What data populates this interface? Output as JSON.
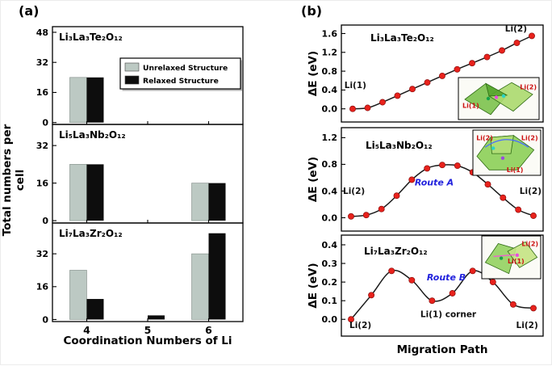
{
  "panels": {
    "a": {
      "label": "(a)",
      "ylabel": "Total numbers per cell",
      "xlabel": "Coordination Numbers of Li"
    },
    "b": {
      "label": "(b)",
      "xlabel": "Migration Path"
    }
  },
  "legend": {
    "items": [
      {
        "label": "Unrelaxed Structure",
        "color": "#bcc9c3"
      },
      {
        "label": "Relaxed Structure",
        "color": "#0d0d0d"
      }
    ]
  },
  "chart_data": [
    {
      "id": "a1",
      "type": "bar",
      "panel": "a",
      "title": "Li₃La₃Te₂O₁₂",
      "categories": [
        "4",
        "5",
        "6"
      ],
      "series": [
        {
          "name": "Unrelaxed Structure",
          "color": "#bcc9c3",
          "values": [
            24,
            0,
            0
          ]
        },
        {
          "name": "Relaxed Structure",
          "color": "#0d0d0d",
          "values": [
            24,
            0,
            0
          ]
        }
      ],
      "ylim": [
        0,
        48
      ],
      "yticks": [
        0,
        16,
        32,
        48
      ],
      "has_legend": true
    },
    {
      "id": "a2",
      "type": "bar",
      "panel": "a",
      "title": "Li₅La₃Nb₂O₁₂",
      "categories": [
        "4",
        "5",
        "6"
      ],
      "series": [
        {
          "name": "Unrelaxed Structure",
          "color": "#bcc9c3",
          "values": [
            24,
            0,
            16
          ]
        },
        {
          "name": "Relaxed Structure",
          "color": "#0d0d0d",
          "values": [
            24,
            0,
            16
          ]
        }
      ],
      "ylim": [
        0,
        40
      ],
      "yticks": [
        0,
        16,
        32
      ]
    },
    {
      "id": "a3",
      "type": "bar",
      "panel": "a",
      "title": "Li₇La₃Zr₂O₁₂",
      "categories": [
        "4",
        "5",
        "6"
      ],
      "series": [
        {
          "name": "Unrelaxed Structure",
          "color": "#bcc9c3",
          "values": [
            24,
            0,
            32
          ]
        },
        {
          "name": "Relaxed Structure",
          "color": "#0d0d0d",
          "values": [
            10,
            2,
            42
          ]
        }
      ],
      "ylim": [
        0,
        46
      ],
      "yticks": [
        0,
        16,
        32
      ],
      "show_xticklabels": true
    },
    {
      "id": "b1",
      "type": "line",
      "panel": "b",
      "title": "Li₃La₃Te₂O₁₂",
      "ylabel": "ΔE (eV)",
      "y": [
        0.0,
        0.02,
        0.14,
        0.28,
        0.42,
        0.56,
        0.7,
        0.84,
        0.97,
        1.1,
        1.24,
        1.4,
        1.55
      ],
      "ylim": [
        0.0,
        1.6
      ],
      "yticks": [
        0.0,
        0.4,
        0.8,
        1.2,
        1.6
      ],
      "point_color": "#e8221c",
      "line_color": "#1a1a1a",
      "annotations": [
        {
          "text": "Li(1)",
          "fx": 0.015,
          "fy": 0.65,
          "anchor": "start",
          "color": "#111111"
        },
        {
          "text": "Li(2)",
          "fx": 0.92,
          "fy": 0.065,
          "anchor": "end",
          "color": "#111111"
        }
      ],
      "inset": {
        "labels": [
          {
            "text": "Li(1)",
            "fx": 0.05,
            "fy": 0.72,
            "anchor": "start",
            "color": "#cc1111"
          },
          {
            "text": "Li(2)",
            "fx": 0.97,
            "fy": 0.28,
            "anchor": "end",
            "color": "#cc1111"
          }
        ]
      }
    },
    {
      "id": "b2",
      "type": "line",
      "panel": "b",
      "title": "Li₅La₃Nb₂O₁₂",
      "ylabel": "ΔE (eV)",
      "y": [
        0.02,
        0.04,
        0.13,
        0.33,
        0.57,
        0.74,
        0.79,
        0.78,
        0.68,
        0.5,
        0.3,
        0.12,
        0.03
      ],
      "ylim": [
        0.0,
        1.2
      ],
      "yticks": [
        0.0,
        0.4,
        0.8,
        1.2
      ],
      "point_color": "#e8221c",
      "line_color": "#1a1a1a",
      "annotations": [
        {
          "text": "Li(2)",
          "fx": 0.008,
          "fy": 0.64,
          "anchor": "start",
          "color": "#111111"
        },
        {
          "text": "Li(2)",
          "fx": 0.992,
          "fy": 0.64,
          "anchor": "end",
          "color": "#111111"
        },
        {
          "text": "Route A",
          "fx": 0.46,
          "fy": 0.56,
          "anchor": "middle",
          "color": "#2222dd",
          "italic": true,
          "size": 11
        }
      ],
      "inset": {
        "labels": [
          {
            "text": "Li(2)",
            "fx": 0.05,
            "fy": 0.22,
            "anchor": "start",
            "color": "#cc1111"
          },
          {
            "text": "Li(2)",
            "fx": 0.96,
            "fy": 0.22,
            "anchor": "end",
            "color": "#cc1111"
          },
          {
            "text": "Li(1)",
            "fx": 0.62,
            "fy": 0.93,
            "anchor": "middle",
            "color": "#cc1111"
          }
        ]
      }
    },
    {
      "id": "b3",
      "type": "line",
      "panel": "b",
      "title": "Li₇La₃Zr₂O₁₂",
      "ylabel": "ΔE (eV)",
      "y": [
        0.0,
        0.13,
        0.26,
        0.21,
        0.1,
        0.14,
        0.26,
        0.2,
        0.08,
        0.06
      ],
      "ylim": [
        0.0,
        0.4
      ],
      "yticks": [
        0.0,
        0.1,
        0.2,
        0.3,
        0.4
      ],
      "point_color": "#e8221c",
      "line_color": "#1a1a1a",
      "annotations": [
        {
          "text": "Li(2)",
          "fx": 0.04,
          "fy": 0.92,
          "anchor": "start",
          "color": "#111111"
        },
        {
          "text": "Li(1) corner",
          "fx": 0.53,
          "fy": 0.81,
          "anchor": "middle",
          "color": "#111111"
        },
        {
          "text": "Li(2)",
          "fx": 0.975,
          "fy": 0.92,
          "anchor": "end",
          "color": "#111111"
        },
        {
          "text": "Route B",
          "fx": 0.52,
          "fy": 0.448,
          "anchor": "middle",
          "color": "#2222dd",
          "italic": true,
          "size": 11
        }
      ],
      "inset": {
        "labels": [
          {
            "text": "Li(2)",
            "fx": 0.96,
            "fy": 0.24,
            "anchor": "end",
            "color": "#cc1111"
          },
          {
            "text": "Li(1)",
            "fx": 0.58,
            "fy": 0.64,
            "anchor": "middle",
            "color": "#cc1111"
          }
        ]
      }
    }
  ]
}
